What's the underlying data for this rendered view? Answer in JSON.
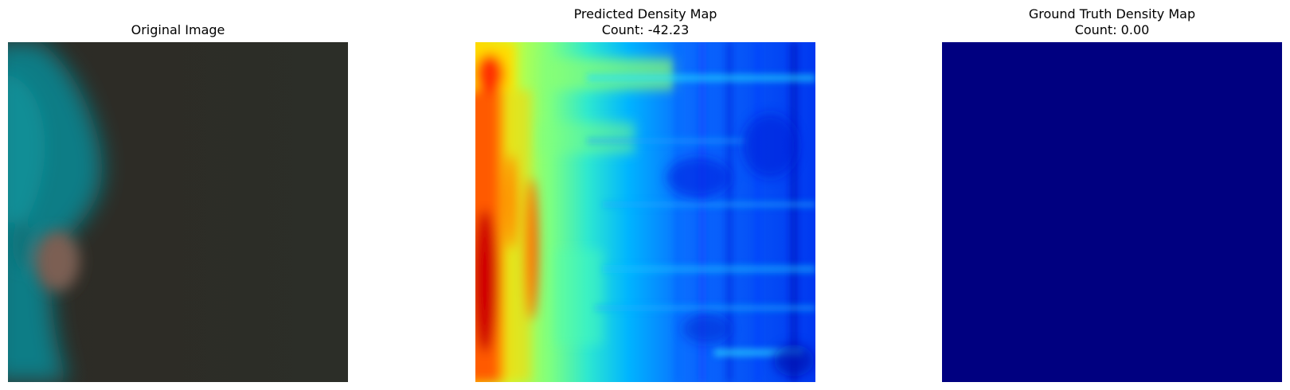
{
  "panels": {
    "original": {
      "title": "Original Image"
    },
    "predicted": {
      "title_line1": "Predicted Density Map",
      "title_line2": "Count: -42.23"
    },
    "ground_truth": {
      "title_line1": "Ground Truth Density Map",
      "title_line2": "Count: 0.00"
    }
  },
  "colors": {
    "gt_fill": "#000080",
    "original_background": "#2a2b25",
    "original_teal": "#11808a",
    "original_skin": "#7b5e53"
  },
  "colormap": "jet"
}
